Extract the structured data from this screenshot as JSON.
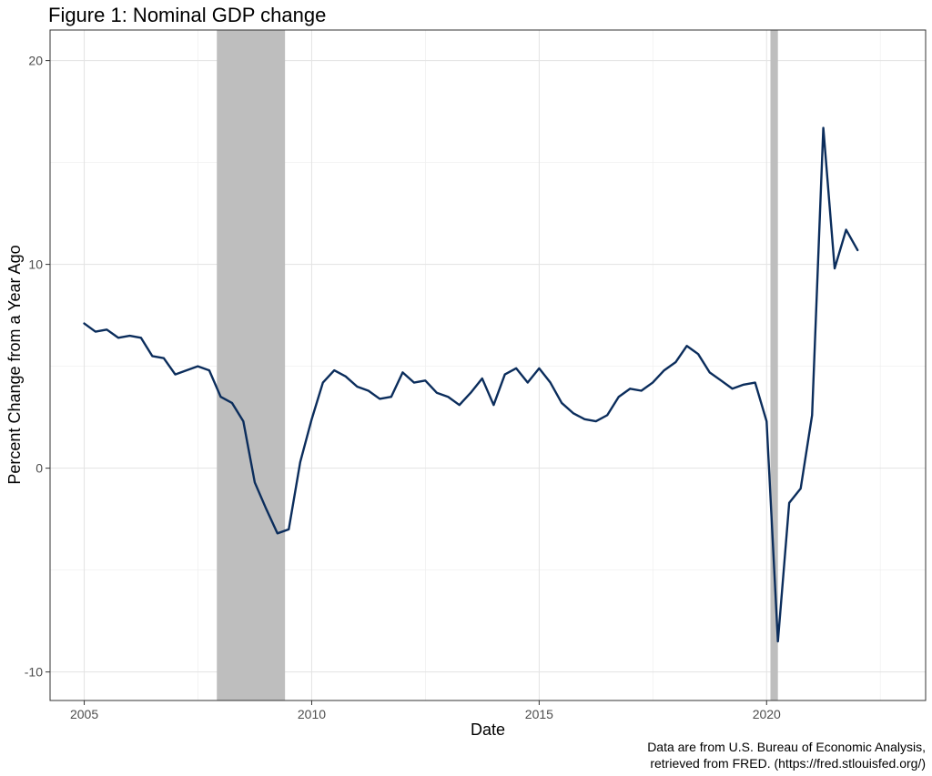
{
  "chart_data": {
    "type": "line",
    "title": "Figure 1: Nominal GDP change",
    "xlabel": "Date",
    "ylabel": "Percent Change from a Year Ago",
    "caption_lines": [
      "Data are from U.S. Bureau of Economic Analysis,",
      "retrieved from FRED. (https://fred.stlouisfed.org/)"
    ],
    "xlim": [
      "2004-04-01",
      "2023-07-01"
    ],
    "ylim": [
      -11.4,
      21.5
    ],
    "x_ticks": [
      "2005-01-01",
      "2010-01-01",
      "2015-01-01",
      "2020-01-01"
    ],
    "x_tick_labels": [
      "2005",
      "2010",
      "2015",
      "2020"
    ],
    "y_ticks": [
      -10,
      0,
      10,
      20
    ],
    "y_tick_labels": [
      "-10",
      "0",
      "10",
      "20"
    ],
    "grid": true,
    "line_color": "#0b2d5c",
    "recession_color": "#bebebe",
    "recessions": [
      {
        "start": "2007-12-01",
        "end": "2009-06-01"
      },
      {
        "start": "2020-02-01",
        "end": "2020-04-01"
      }
    ],
    "series": [
      {
        "x": [
          "2005-01-01",
          "2005-04-01",
          "2005-07-01",
          "2005-10-01",
          "2006-01-01",
          "2006-04-01",
          "2006-07-01",
          "2006-10-01",
          "2007-01-01",
          "2007-04-01",
          "2007-07-01",
          "2007-10-01",
          "2008-01-01",
          "2008-04-01",
          "2008-07-01",
          "2008-10-01",
          "2009-01-01",
          "2009-04-01",
          "2009-07-01",
          "2009-10-01",
          "2010-01-01",
          "2010-04-01",
          "2010-07-01",
          "2010-10-01",
          "2011-01-01",
          "2011-04-01",
          "2011-07-01",
          "2011-10-01",
          "2012-01-01",
          "2012-04-01",
          "2012-07-01",
          "2012-10-01",
          "2013-01-01",
          "2013-04-01",
          "2013-07-01",
          "2013-10-01",
          "2014-01-01",
          "2014-04-01",
          "2014-07-01",
          "2014-10-01",
          "2015-01-01",
          "2015-04-01",
          "2015-07-01",
          "2015-10-01",
          "2016-01-01",
          "2016-04-01",
          "2016-07-01",
          "2016-10-01",
          "2017-01-01",
          "2017-04-01",
          "2017-07-01",
          "2017-10-01",
          "2018-01-01",
          "2018-04-01",
          "2018-07-01",
          "2018-10-01",
          "2019-01-01",
          "2019-04-01",
          "2019-07-01",
          "2019-10-01",
          "2020-01-01",
          "2020-04-01",
          "2020-07-01",
          "2020-10-01",
          "2021-01-01",
          "2021-04-01",
          "2021-07-01",
          "2021-10-01",
          "2022-01-01"
        ],
        "values": [
          7.1,
          6.7,
          6.8,
          6.4,
          6.5,
          6.4,
          5.5,
          5.4,
          4.6,
          4.8,
          5.0,
          4.8,
          3.5,
          3.2,
          2.3,
          -0.7,
          -2.0,
          -3.2,
          -3.0,
          0.3,
          2.4,
          4.2,
          4.8,
          4.5,
          4.0,
          3.8,
          3.4,
          3.5,
          4.7,
          4.2,
          4.3,
          3.7,
          3.5,
          3.1,
          3.7,
          4.4,
          3.1,
          4.6,
          4.9,
          4.2,
          4.9,
          4.2,
          3.2,
          2.7,
          2.4,
          2.3,
          2.6,
          3.5,
          3.9,
          3.8,
          4.2,
          4.8,
          5.2,
          6.0,
          5.6,
          4.7,
          4.3,
          3.9,
          4.1,
          4.2,
          2.3,
          -8.5,
          -1.7,
          -1.0,
          2.6,
          16.7,
          9.8,
          11.7,
          10.7
        ]
      }
    ]
  }
}
